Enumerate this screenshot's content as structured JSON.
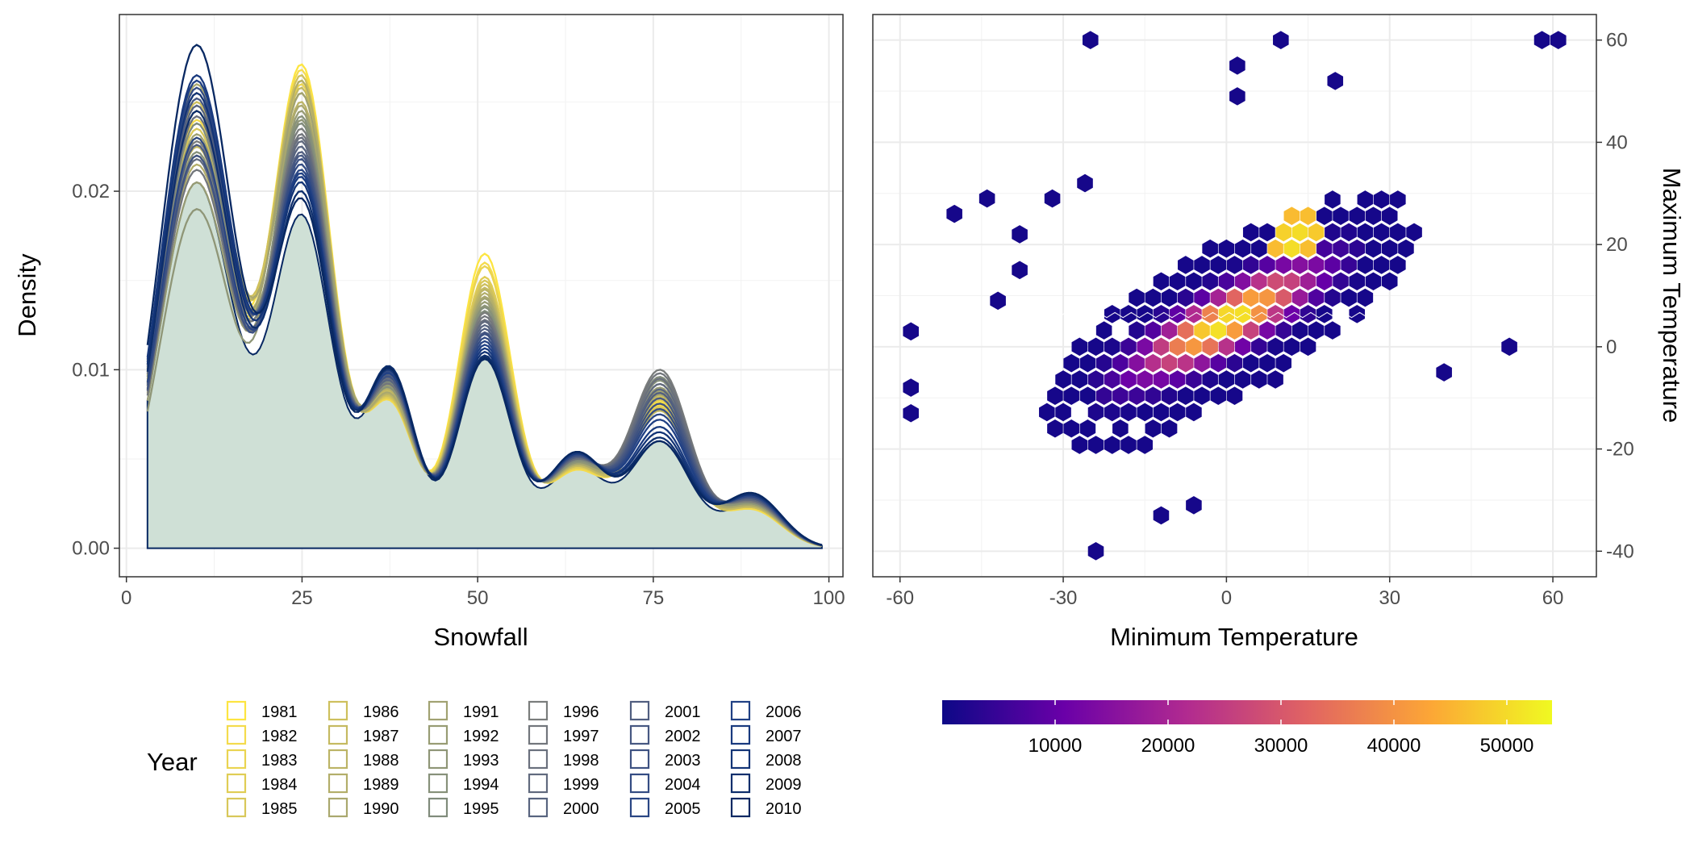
{
  "chart_data": [
    {
      "type": "area",
      "xlabel": "Snowfall",
      "ylabel": "Density",
      "xlim": [
        -1,
        102
      ],
      "ylim": [
        -0.0016,
        0.0299
      ],
      "x_ticks": [
        0,
        25,
        50,
        75,
        100
      ],
      "y_ticks": [
        0.0,
        0.01,
        0.02
      ],
      "x_tick_labels": [
        "0",
        "25",
        "50",
        "75",
        "100"
      ],
      "y_tick_labels": [
        "0.00",
        "0.01",
        "0.02"
      ],
      "grid": true,
      "fill_color": "#CFE0D6",
      "x_range": [
        3,
        99
      ],
      "peak_positions": [
        10,
        25,
        37.5,
        51,
        64,
        76,
        89
      ],
      "filled_series_peaks": [
        0.0205,
        0.0187,
        0.0096,
        0.0107,
        0.0046,
        0.006,
        0.0024
      ],
      "series": [
        {
          "name": "1981",
          "color": "#FDE541",
          "peaks": [
            0.023,
            0.0271,
            0.0085,
            0.0165,
            0.0044,
            0.0082,
            0.0022
          ]
        },
        {
          "name": "1982",
          "color": "#F4DB4D",
          "peaks": [
            0.024,
            0.0268,
            0.0083,
            0.016,
            0.0044,
            0.008,
            0.0022
          ]
        },
        {
          "name": "1983",
          "color": "#EAD451",
          "peaks": [
            0.022,
            0.026,
            0.0086,
            0.0158,
            0.0045,
            0.0078,
            0.0023
          ]
        },
        {
          "name": "1984",
          "color": "#E0CD55",
          "peaks": [
            0.0245,
            0.0262,
            0.0084,
            0.0152,
            0.0045,
            0.0083,
            0.0023
          ]
        },
        {
          "name": "1985",
          "color": "#D8C75A",
          "peaks": [
            0.0235,
            0.0255,
            0.0087,
            0.015,
            0.0046,
            0.0079,
            0.0023
          ]
        },
        {
          "name": "1986",
          "color": "#CEC05D",
          "peaks": [
            0.025,
            0.0265,
            0.0085,
            0.0148,
            0.0046,
            0.0085,
            0.0024
          ]
        },
        {
          "name": "1987",
          "color": "#C5BA61",
          "peaks": [
            0.0225,
            0.0258,
            0.0088,
            0.0146,
            0.0046,
            0.0077,
            0.0023
          ]
        },
        {
          "name": "1988",
          "color": "#BCB466",
          "peaks": [
            0.0255,
            0.025,
            0.0086,
            0.0145,
            0.0047,
            0.0084,
            0.0024
          ]
        },
        {
          "name": "1989",
          "color": "#B3AE6A",
          "peaks": [
            0.0215,
            0.0262,
            0.0089,
            0.0143,
            0.0047,
            0.0081,
            0.0024
          ]
        },
        {
          "name": "1990",
          "color": "#AAA86E",
          "peaks": [
            0.026,
            0.0248,
            0.0087,
            0.0141,
            0.0047,
            0.0086,
            0.0024
          ]
        },
        {
          "name": "1991",
          "color": "#A1A272",
          "peaks": [
            0.0232,
            0.0255,
            0.009,
            0.014,
            0.0048,
            0.0088,
            0.0025
          ]
        },
        {
          "name": "1992",
          "color": "#989C74",
          "peaks": [
            0.0205,
            0.0245,
            0.0091,
            0.0138,
            0.0048,
            0.009,
            0.0025
          ]
        },
        {
          "name": "1993",
          "color": "#8F9677",
          "peaks": [
            0.019,
            0.024,
            0.0092,
            0.0136,
            0.0048,
            0.0092,
            0.0025
          ]
        },
        {
          "name": "1994",
          "color": "#87917A",
          "peaks": [
            0.0222,
            0.0242,
            0.009,
            0.0135,
            0.0049,
            0.0094,
            0.0026
          ]
        },
        {
          "name": "1995",
          "color": "#808B7B",
          "peaks": [
            0.0238,
            0.0238,
            0.0093,
            0.0133,
            0.0049,
            0.0096,
            0.0026
          ]
        },
        {
          "name": "1996",
          "color": "#7A7D7C",
          "peaks": [
            0.0228,
            0.0235,
            0.0094,
            0.0132,
            0.005,
            0.01,
            0.0026
          ]
        },
        {
          "name": "1997",
          "color": "#72767C",
          "peaks": [
            0.0212,
            0.0232,
            0.0092,
            0.013,
            0.005,
            0.0098,
            0.0027
          ]
        },
        {
          "name": "1998",
          "color": "#6A707D",
          "peaks": [
            0.0242,
            0.023,
            0.0095,
            0.0128,
            0.005,
            0.0095,
            0.0027
          ]
        },
        {
          "name": "1999",
          "color": "#616A7E",
          "peaks": [
            0.0218,
            0.0228,
            0.0096,
            0.0127,
            0.0051,
            0.0092,
            0.0027
          ]
        },
        {
          "name": "2000",
          "color": "#58647F",
          "peaks": [
            0.0248,
            0.0225,
            0.0094,
            0.0125,
            0.0051,
            0.0089,
            0.0028
          ]
        },
        {
          "name": "2001",
          "color": "#505E80",
          "peaks": [
            0.0226,
            0.0222,
            0.0097,
            0.0123,
            0.0051,
            0.0087,
            0.0028
          ]
        },
        {
          "name": "2002",
          "color": "#475882",
          "peaks": [
            0.0252,
            0.022,
            0.0098,
            0.0121,
            0.0052,
            0.0084,
            0.0028
          ]
        },
        {
          "name": "2003",
          "color": "#3E5282",
          "peaks": [
            0.022,
            0.0218,
            0.0096,
            0.012,
            0.0052,
            0.0081,
            0.0029
          ]
        },
        {
          "name": "2004",
          "color": "#344C83",
          "peaks": [
            0.0258,
            0.0215,
            0.0099,
            0.0118,
            0.0052,
            0.0078,
            0.0029
          ]
        },
        {
          "name": "2005",
          "color": "#2A4684",
          "peaks": [
            0.023,
            0.0212,
            0.01,
            0.0116,
            0.0053,
            0.0075,
            0.0029
          ]
        },
        {
          "name": "2006",
          "color": "#204084",
          "peaks": [
            0.0262,
            0.021,
            0.0098,
            0.0114,
            0.0053,
            0.0072,
            0.003
          ]
        },
        {
          "name": "2007",
          "color": "#193A7E",
          "peaks": [
            0.0265,
            0.0208,
            0.0101,
            0.0112,
            0.0053,
            0.0068,
            0.003
          ]
        },
        {
          "name": "2008",
          "color": "#133476",
          "peaks": [
            0.0255,
            0.0205,
            0.01,
            0.011,
            0.0054,
            0.0065,
            0.003
          ]
        },
        {
          "name": "2009",
          "color": "#0D2E6C",
          "peaks": [
            0.0245,
            0.02,
            0.0102,
            0.0108,
            0.0054,
            0.0062,
            0.0031
          ]
        },
        {
          "name": "2010",
          "color": "#082862",
          "peaks": [
            0.0282,
            0.0196,
            0.0101,
            0.0106,
            0.0054,
            0.006,
            0.0031
          ]
        }
      ],
      "legend": {
        "title": "Year",
        "position": "bottom",
        "columns": 6
      }
    },
    {
      "type": "heatmap",
      "subtype": "hexbin",
      "xlabel": "Minimum Temperature",
      "ylabel": "Maximum Temperature",
      "xlim": [
        -65,
        68
      ],
      "ylim": [
        -45,
        65
      ],
      "x_ticks": [
        -60,
        -30,
        0,
        30,
        60
      ],
      "y_ticks": [
        -40,
        -20,
        0,
        20,
        40,
        60
      ],
      "x_tick_labels": [
        "-60",
        "-30",
        "0",
        "30",
        "60"
      ],
      "y_tick_labels": [
        "-40",
        "-20",
        "0",
        "20",
        "40",
        "60"
      ],
      "y_axis_position": "right",
      "grid": true,
      "colorbar": {
        "min": 1,
        "max": 54000,
        "ticks": [
          10000,
          20000,
          30000,
          40000,
          50000
        ],
        "tick_labels": [
          "10000",
          "20000",
          "30000",
          "40000",
          "50000"
        ],
        "colors": [
          "#0D0887",
          "#6A00A8",
          "#B12A90",
          "#E16462",
          "#FCA636",
          "#F0F921"
        ],
        "position": "bottom"
      },
      "scattered_bins": [
        [
          -25,
          60
        ],
        [
          10,
          60
        ],
        [
          58,
          60
        ],
        [
          61,
          60
        ],
        [
          2,
          55
        ],
        [
          20,
          52
        ],
        [
          2,
          49
        ],
        [
          -50,
          26
        ],
        [
          -44,
          29
        ],
        [
          -32,
          29
        ],
        [
          -26,
          32
        ],
        [
          -38,
          22
        ],
        [
          -38,
          15
        ],
        [
          -42,
          9
        ],
        [
          -58,
          3
        ],
        [
          -58,
          -8
        ],
        [
          -58,
          -13
        ],
        [
          -24,
          -40
        ],
        [
          52,
          0
        ],
        [
          40,
          -5
        ],
        [
          -12,
          -33
        ],
        [
          -6,
          -31
        ]
      ]
    }
  ]
}
